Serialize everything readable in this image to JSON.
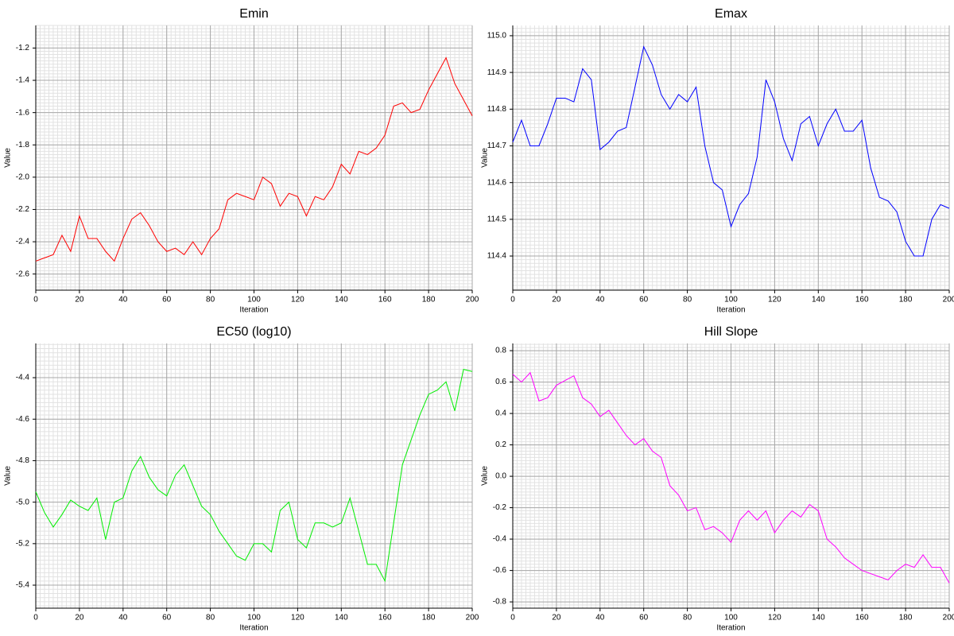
{
  "chart_data": [
    {
      "type": "line",
      "title": "Emin",
      "x_label": "Iteration",
      "y_label": "Value",
      "xlim": [
        0,
        200
      ],
      "xticks": [
        0,
        20,
        40,
        60,
        80,
        100,
        120,
        140,
        160,
        180,
        200
      ],
      "ylim": [
        -2.7,
        -1.06
      ],
      "yticks": [
        -2.6,
        -2.4,
        -2.2,
        {
          "value": -2,
          "label": "-2.0"
        },
        -1.8,
        -1.6,
        -1.4,
        -1.2
      ],
      "grid": true,
      "x": [
        0,
        4,
        8,
        12,
        16,
        20,
        24,
        28,
        32,
        36,
        40,
        44,
        48,
        52,
        56,
        60,
        64,
        68,
        72,
        76,
        80,
        84,
        88,
        92,
        96,
        100,
        104,
        108,
        112,
        116,
        120,
        124,
        128,
        132,
        136,
        140,
        144,
        148,
        152,
        156,
        160,
        164,
        168,
        172,
        176,
        180,
        184,
        188,
        192,
        196,
        200
      ],
      "series": [
        {
          "color": "#ff0000",
          "values": [
            -2.52,
            -2.5,
            -2.48,
            -2.36,
            -2.46,
            -2.24,
            -2.38,
            -2.38,
            -2.46,
            -2.52,
            -2.38,
            -2.26,
            -2.22,
            -2.3,
            -2.4,
            -2.46,
            -2.44,
            -2.48,
            -2.4,
            -2.48,
            -2.38,
            -2.32,
            -2.14,
            -2.1,
            -2.12,
            -2.14,
            -2.0,
            -2.04,
            -2.18,
            -2.1,
            -2.12,
            -2.24,
            -2.12,
            -2.14,
            -2.06,
            -1.92,
            -1.98,
            -1.84,
            -1.86,
            -1.82,
            -1.74,
            -1.56,
            -1.54,
            -1.6,
            -1.58,
            -1.46,
            -1.36,
            -1.26,
            -1.42,
            -1.52,
            -1.62
          ]
        }
      ]
    },
    {
      "type": "line",
      "title": "Emax",
      "x_label": "Iteration",
      "y_label": "Value",
      "xlim": [
        0,
        200
      ],
      "xticks": [
        0,
        20,
        40,
        60,
        80,
        100,
        120,
        140,
        160,
        180,
        200
      ],
      "ylim": [
        114.307,
        115.028
      ],
      "yticks": [
        114.4,
        114.5,
        114.6,
        114.7,
        114.8,
        114.9,
        {
          "value": 115,
          "label": "115.0"
        }
      ],
      "grid": true,
      "x": [
        0,
        4,
        8,
        12,
        16,
        20,
        24,
        28,
        32,
        36,
        40,
        44,
        48,
        52,
        56,
        60,
        64,
        68,
        72,
        76,
        80,
        84,
        88,
        92,
        96,
        100,
        104,
        108,
        112,
        116,
        120,
        124,
        128,
        132,
        136,
        140,
        144,
        148,
        152,
        156,
        160,
        164,
        168,
        172,
        176,
        180,
        184,
        188,
        192,
        196,
        200
      ],
      "series": [
        {
          "color": "#0000ff",
          "values": [
            114.71,
            114.77,
            114.7,
            114.7,
            114.76,
            114.83,
            114.83,
            114.82,
            114.91,
            114.88,
            114.69,
            114.71,
            114.74,
            114.75,
            114.86,
            114.97,
            114.92,
            114.84,
            114.8,
            114.84,
            114.82,
            114.86,
            114.7,
            114.6,
            114.58,
            114.48,
            114.54,
            114.57,
            114.67,
            114.88,
            114.82,
            114.72,
            114.66,
            114.76,
            114.78,
            114.7,
            114.76,
            114.8,
            114.74,
            114.74,
            114.77,
            114.64,
            114.56,
            114.55,
            114.52,
            114.44,
            114.4,
            114.4,
            114.5,
            114.54,
            114.53
          ]
        }
      ]
    },
    {
      "type": "line",
      "title": "EC50 (log10)",
      "x_label": "Iteration",
      "y_label": "Value",
      "xlim": [
        0,
        200
      ],
      "xticks": [
        0,
        20,
        40,
        60,
        80,
        100,
        120,
        140,
        160,
        180,
        200
      ],
      "ylim": [
        -5.511,
        -4.235
      ],
      "yticks": [
        -5.4,
        -5.2,
        {
          "value": -5,
          "label": "-5.0"
        },
        -4.8,
        -4.6,
        -4.4
      ],
      "grid": true,
      "x": [
        0,
        4,
        8,
        12,
        16,
        20,
        24,
        28,
        32,
        36,
        40,
        44,
        48,
        52,
        56,
        60,
        64,
        68,
        72,
        76,
        80,
        84,
        88,
        92,
        96,
        100,
        104,
        108,
        112,
        116,
        120,
        124,
        128,
        132,
        136,
        140,
        144,
        148,
        152,
        156,
        160,
        164,
        168,
        172,
        176,
        180,
        184,
        188,
        192,
        196,
        200
      ],
      "series": [
        {
          "color": "#00ee00",
          "values": [
            -4.95,
            -5.05,
            -5.12,
            -5.06,
            -4.99,
            -5.02,
            -5.04,
            -4.98,
            -5.18,
            -5.0,
            -4.98,
            -4.85,
            -4.78,
            -4.88,
            -4.94,
            -4.97,
            -4.87,
            -4.82,
            -4.92,
            -5.02,
            -5.06,
            -5.14,
            -5.2,
            -5.26,
            -5.28,
            -5.2,
            -5.2,
            -5.24,
            -5.04,
            -5.0,
            -5.18,
            -5.22,
            -5.1,
            -5.1,
            -5.12,
            -5.1,
            -4.98,
            -5.14,
            -5.3,
            -5.3,
            -5.38,
            -5.1,
            -4.82,
            -4.7,
            -4.58,
            -4.48,
            -4.46,
            -4.42,
            -4.56,
            -4.36,
            -4.37
          ]
        }
      ]
    },
    {
      "type": "line",
      "title": "Hill Slope",
      "x_label": "Iteration",
      "y_label": "Value",
      "xlim": [
        0,
        200
      ],
      "xticks": [
        0,
        20,
        40,
        60,
        80,
        100,
        120,
        140,
        160,
        180,
        200
      ],
      "ylim": [
        -0.84,
        0.846
      ],
      "yticks": [
        -0.8,
        -0.6,
        -0.4,
        -0.2,
        {
          "value": 0,
          "label": "0.0"
        },
        0.2,
        0.4,
        0.6,
        0.8
      ],
      "grid": true,
      "x": [
        0,
        4,
        8,
        12,
        16,
        20,
        24,
        28,
        32,
        36,
        40,
        44,
        48,
        52,
        56,
        60,
        64,
        68,
        72,
        76,
        80,
        84,
        88,
        92,
        96,
        100,
        104,
        108,
        112,
        116,
        120,
        124,
        128,
        132,
        136,
        140,
        144,
        148,
        152,
        156,
        160,
        164,
        168,
        172,
        176,
        180,
        184,
        188,
        192,
        196,
        200
      ],
      "series": [
        {
          "color": "#ff00ff",
          "values": [
            0.65,
            0.6,
            0.66,
            0.48,
            0.5,
            0.58,
            0.61,
            0.64,
            0.5,
            0.46,
            0.38,
            0.42,
            0.34,
            0.26,
            0.2,
            0.24,
            0.16,
            0.12,
            -0.06,
            -0.12,
            -0.22,
            -0.2,
            -0.34,
            -0.32,
            -0.36,
            -0.42,
            -0.28,
            -0.22,
            -0.28,
            -0.22,
            -0.36,
            -0.28,
            -0.22,
            -0.26,
            -0.18,
            -0.22,
            -0.4,
            -0.45,
            -0.52,
            -0.56,
            -0.6,
            -0.62,
            -0.64,
            -0.66,
            -0.6,
            -0.56,
            -0.58,
            -0.5,
            -0.58,
            -0.58,
            -0.68
          ]
        }
      ]
    }
  ]
}
